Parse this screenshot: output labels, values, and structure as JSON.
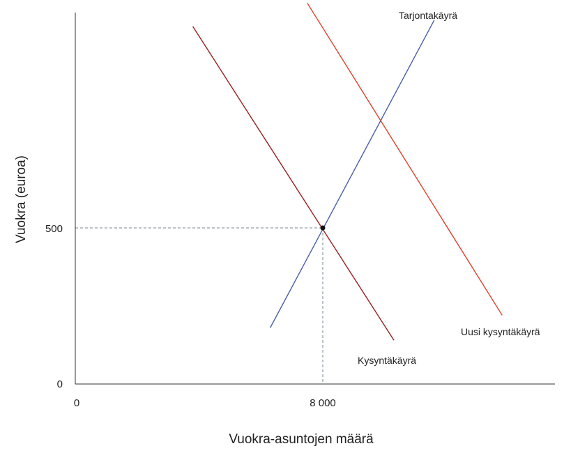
{
  "chart_data": {
    "type": "line",
    "xlabel": "Vuokra-asuntojen määrä",
    "ylabel": "Vuokra (euroa)",
    "x_ticks": [
      "0",
      "8 000"
    ],
    "y_ticks": [
      "0",
      "500"
    ],
    "xlim": [
      0,
      15600
    ],
    "ylim": [
      0,
      1226
    ],
    "grid": false,
    "series": [
      {
        "name": "Tarjontakäyrä",
        "color": "#4a5fa8",
        "points": [
          [
            6300,
            180
          ],
          [
            11600,
            1165
          ]
        ]
      },
      {
        "name": "Kysyntäkäyrä",
        "color": "#9a1e1e",
        "points": [
          [
            3800,
            1145
          ],
          [
            10300,
            140
          ]
        ]
      },
      {
        "name": "Uusi kysyntäkäyrä",
        "color": "#e0402a",
        "points": [
          [
            7500,
            1220
          ],
          [
            13800,
            220
          ]
        ]
      }
    ],
    "equilibrium": {
      "x": 8000,
      "y": 500
    },
    "reference_lines": [
      {
        "axis": "y",
        "value": 500,
        "style": "dashed"
      },
      {
        "axis": "x",
        "value": 8000,
        "style": "dashed"
      }
    ]
  }
}
